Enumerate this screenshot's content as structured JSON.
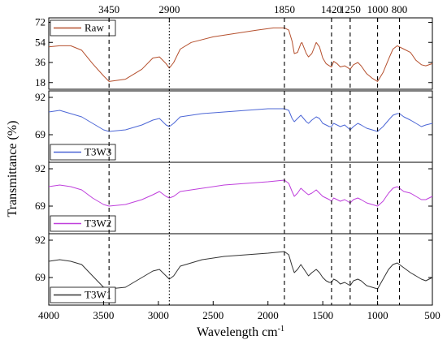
{
  "chart_data": {
    "type": "line",
    "xlabel": "Wavelength cm",
    "xlabel_sup": "-1",
    "ylabel": "Transmittance (%)",
    "xlim": [
      4000,
      500
    ],
    "x_ticks": [
      4000,
      3500,
      3000,
      2500,
      2000,
      1500,
      1000,
      500
    ],
    "reference_lines": [
      {
        "x": 3450,
        "label": "3450"
      },
      {
        "x": 2900,
        "label": "2900"
      },
      {
        "x": 1850,
        "label": "1850"
      },
      {
        "x": 1420,
        "label": "1420"
      },
      {
        "x": 1250,
        "label": "1250"
      },
      {
        "x": 1000,
        "label": "1000"
      },
      {
        "x": 800,
        "label": "800"
      }
    ],
    "panels": [
      {
        "name": "Raw",
        "color": "#b5502e",
        "ylim": [
          12,
          76
        ],
        "y_ticks": [
          18,
          36,
          54,
          72
        ],
        "points": [
          [
            4000,
            50
          ],
          [
            3900,
            51
          ],
          [
            3800,
            51
          ],
          [
            3700,
            47
          ],
          [
            3600,
            35
          ],
          [
            3500,
            24
          ],
          [
            3450,
            19
          ],
          [
            3300,
            21
          ],
          [
            3150,
            30
          ],
          [
            3050,
            40
          ],
          [
            2990,
            41
          ],
          [
            2930,
            35
          ],
          [
            2900,
            31
          ],
          [
            2860,
            36
          ],
          [
            2800,
            48
          ],
          [
            2700,
            54
          ],
          [
            2500,
            59
          ],
          [
            2300,
            62
          ],
          [
            2100,
            65
          ],
          [
            1950,
            67
          ],
          [
            1850,
            67
          ],
          [
            1810,
            65
          ],
          [
            1780,
            55
          ],
          [
            1760,
            44
          ],
          [
            1730,
            45
          ],
          [
            1700,
            53
          ],
          [
            1690,
            54
          ],
          [
            1650,
            44
          ],
          [
            1630,
            41
          ],
          [
            1600,
            44
          ],
          [
            1560,
            54
          ],
          [
            1530,
            50
          ],
          [
            1500,
            40
          ],
          [
            1470,
            35
          ],
          [
            1440,
            33
          ],
          [
            1420,
            32
          ],
          [
            1400,
            37
          ],
          [
            1370,
            35
          ],
          [
            1340,
            32
          ],
          [
            1300,
            33
          ],
          [
            1250,
            30
          ],
          [
            1220,
            34
          ],
          [
            1180,
            36
          ],
          [
            1150,
            33
          ],
          [
            1100,
            26
          ],
          [
            1050,
            22
          ],
          [
            1000,
            19
          ],
          [
            950,
            27
          ],
          [
            900,
            39
          ],
          [
            860,
            48
          ],
          [
            820,
            51
          ],
          [
            800,
            50
          ],
          [
            760,
            48
          ],
          [
            700,
            45
          ],
          [
            650,
            38
          ],
          [
            600,
            34
          ],
          [
            560,
            33
          ],
          [
            500,
            35
          ]
        ]
      },
      {
        "name": "T3W3",
        "color": "#4d67d6",
        "ylim": [
          52,
          96
        ],
        "y_ticks": [
          69,
          92
        ],
        "points": [
          [
            4000,
            83
          ],
          [
            3900,
            84
          ],
          [
            3800,
            82
          ],
          [
            3700,
            80
          ],
          [
            3600,
            76
          ],
          [
            3500,
            72
          ],
          [
            3450,
            71
          ],
          [
            3300,
            72
          ],
          [
            3150,
            75
          ],
          [
            3050,
            78
          ],
          [
            2990,
            79
          ],
          [
            2930,
            75
          ],
          [
            2900,
            74
          ],
          [
            2860,
            76
          ],
          [
            2800,
            80
          ],
          [
            2600,
            82
          ],
          [
            2400,
            83
          ],
          [
            2200,
            84
          ],
          [
            2000,
            85
          ],
          [
            1850,
            85
          ],
          [
            1810,
            84
          ],
          [
            1780,
            79
          ],
          [
            1760,
            77
          ],
          [
            1730,
            79
          ],
          [
            1700,
            81
          ],
          [
            1650,
            77
          ],
          [
            1630,
            76
          ],
          [
            1600,
            78
          ],
          [
            1560,
            80
          ],
          [
            1530,
            79
          ],
          [
            1500,
            76
          ],
          [
            1470,
            75
          ],
          [
            1440,
            74
          ],
          [
            1420,
            74
          ],
          [
            1400,
            76
          ],
          [
            1370,
            75
          ],
          [
            1340,
            74
          ],
          [
            1300,
            75
          ],
          [
            1250,
            72
          ],
          [
            1220,
            74
          ],
          [
            1180,
            76
          ],
          [
            1150,
            75
          ],
          [
            1100,
            73
          ],
          [
            1050,
            72
          ],
          [
            1000,
            71
          ],
          [
            950,
            74
          ],
          [
            900,
            78
          ],
          [
            860,
            81
          ],
          [
            820,
            82
          ],
          [
            800,
            82
          ],
          [
            760,
            80
          ],
          [
            700,
            78
          ],
          [
            650,
            76
          ],
          [
            600,
            74
          ],
          [
            560,
            75
          ],
          [
            500,
            76
          ]
        ]
      },
      {
        "name": "T3W2",
        "color": "#bf3fdc",
        "ylim": [
          52,
          96
        ],
        "y_ticks": [
          69,
          92
        ],
        "points": [
          [
            4000,
            81
          ],
          [
            3900,
            82
          ],
          [
            3800,
            81
          ],
          [
            3700,
            79
          ],
          [
            3600,
            74
          ],
          [
            3500,
            70
          ],
          [
            3450,
            69
          ],
          [
            3300,
            70
          ],
          [
            3150,
            73
          ],
          [
            3050,
            76
          ],
          [
            2990,
            78
          ],
          [
            2930,
            75
          ],
          [
            2900,
            74
          ],
          [
            2860,
            75
          ],
          [
            2800,
            78
          ],
          [
            2600,
            80
          ],
          [
            2400,
            82
          ],
          [
            2200,
            83
          ],
          [
            2000,
            84
          ],
          [
            1850,
            85
          ],
          [
            1810,
            83
          ],
          [
            1780,
            78
          ],
          [
            1760,
            75
          ],
          [
            1730,
            77
          ],
          [
            1700,
            80
          ],
          [
            1650,
            77
          ],
          [
            1630,
            76
          ],
          [
            1600,
            77
          ],
          [
            1560,
            79
          ],
          [
            1530,
            77
          ],
          [
            1500,
            75
          ],
          [
            1470,
            74
          ],
          [
            1440,
            73
          ],
          [
            1420,
            72
          ],
          [
            1400,
            74
          ],
          [
            1370,
            73
          ],
          [
            1340,
            72
          ],
          [
            1300,
            73
          ],
          [
            1250,
            71
          ],
          [
            1220,
            73
          ],
          [
            1180,
            74
          ],
          [
            1150,
            73
          ],
          [
            1100,
            71
          ],
          [
            1050,
            70
          ],
          [
            1000,
            69
          ],
          [
            950,
            72
          ],
          [
            900,
            77
          ],
          [
            860,
            80
          ],
          [
            820,
            81
          ],
          [
            800,
            80
          ],
          [
            760,
            78
          ],
          [
            700,
            77
          ],
          [
            650,
            75
          ],
          [
            600,
            73
          ],
          [
            560,
            73
          ],
          [
            500,
            75
          ]
        ]
      },
      {
        "name": "T3W1",
        "color": "#333333",
        "ylim": [
          52,
          96
        ],
        "y_ticks": [
          69,
          92
        ],
        "points": [
          [
            4000,
            79
          ],
          [
            3900,
            80
          ],
          [
            3800,
            79
          ],
          [
            3700,
            77
          ],
          [
            3600,
            70
          ],
          [
            3500,
            63
          ],
          [
            3450,
            62
          ],
          [
            3300,
            63
          ],
          [
            3150,
            69
          ],
          [
            3050,
            73
          ],
          [
            2990,
            74
          ],
          [
            2930,
            70
          ],
          [
            2900,
            68
          ],
          [
            2860,
            70
          ],
          [
            2800,
            76
          ],
          [
            2600,
            80
          ],
          [
            2400,
            82
          ],
          [
            2200,
            83
          ],
          [
            2000,
            84
          ],
          [
            1850,
            85
          ],
          [
            1810,
            83
          ],
          [
            1780,
            76
          ],
          [
            1760,
            72
          ],
          [
            1730,
            74
          ],
          [
            1700,
            77
          ],
          [
            1650,
            72
          ],
          [
            1630,
            70
          ],
          [
            1600,
            72
          ],
          [
            1560,
            74
          ],
          [
            1530,
            72
          ],
          [
            1500,
            69
          ],
          [
            1470,
            67
          ],
          [
            1440,
            66
          ],
          [
            1420,
            66
          ],
          [
            1400,
            68
          ],
          [
            1370,
            67
          ],
          [
            1340,
            65
          ],
          [
            1300,
            66
          ],
          [
            1250,
            64
          ],
          [
            1220,
            67
          ],
          [
            1180,
            68
          ],
          [
            1150,
            67
          ],
          [
            1100,
            64
          ],
          [
            1050,
            63
          ],
          [
            1000,
            62
          ],
          [
            950,
            68
          ],
          [
            900,
            74
          ],
          [
            860,
            77
          ],
          [
            820,
            78
          ],
          [
            800,
            77
          ],
          [
            760,
            75
          ],
          [
            700,
            72
          ],
          [
            650,
            70
          ],
          [
            600,
            68
          ],
          [
            560,
            67
          ],
          [
            500,
            69
          ]
        ]
      }
    ]
  }
}
